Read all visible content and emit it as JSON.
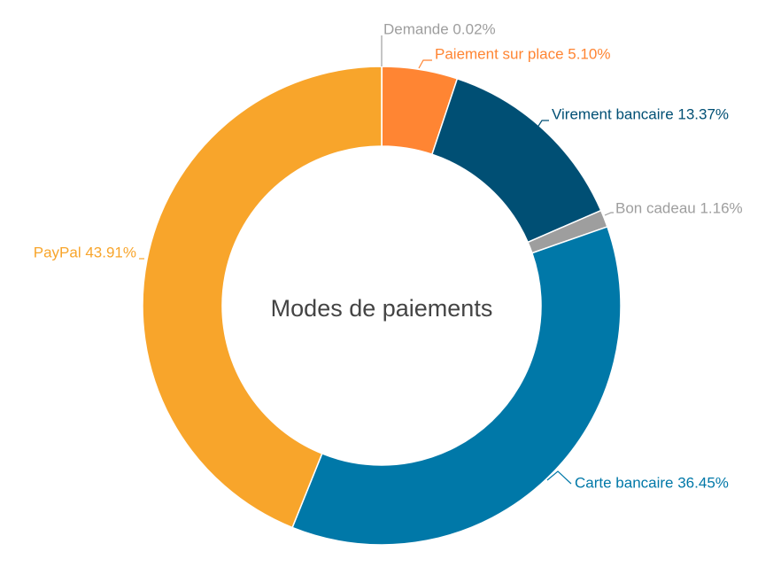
{
  "chart_data": {
    "type": "pie",
    "donut": true,
    "title": "Modes de paiements",
    "slices": [
      {
        "name": "Demande",
        "value": 0.02,
        "label": "Demande 0.02%",
        "color": "#9e9e9e"
      },
      {
        "name": "Paiement sur place",
        "value": 5.1,
        "label": "Paiement sur place 5.10%",
        "color": "#ff8533"
      },
      {
        "name": "Virement bancaire",
        "value": 13.37,
        "label": "Virement bancaire 13.37%",
        "color": "#004f74"
      },
      {
        "name": "Bon cadeau",
        "value": 1.16,
        "label": "Bon cadeau 1.16%",
        "color": "#9e9e9e"
      },
      {
        "name": "Carte bancaire",
        "value": 36.45,
        "label": "Carte bancaire 36.45%",
        "color": "#0078a8"
      },
      {
        "name": "PayPal",
        "value": 43.91,
        "label": "PayPal 43.91%",
        "color": "#f8a52b"
      }
    ],
    "label_colors": [
      "#9e9e9e",
      "#ff8533",
      "#004f74",
      "#9e9e9e",
      "#0078a8",
      "#f8a52b"
    ],
    "start_angle": "12 o'clock",
    "direction": "clockwise",
    "legend": "none"
  }
}
